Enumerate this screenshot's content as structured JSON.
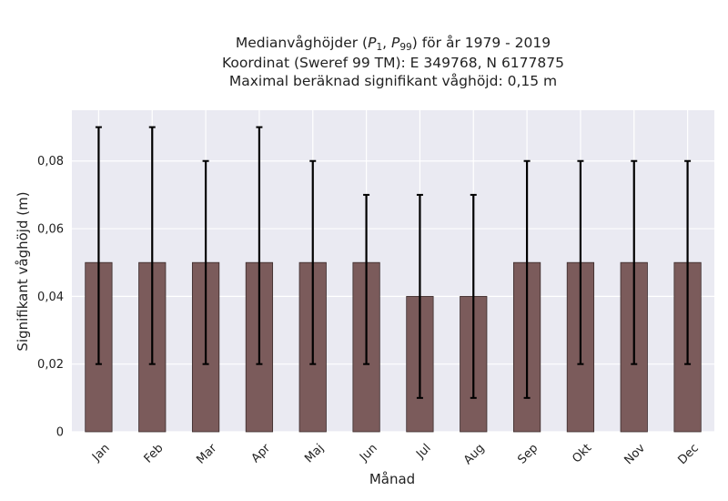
{
  "chart_data": {
    "type": "bar",
    "title_lines": [
      "Medianvåghöjder (P1, P99) för år 1979 - 2019",
      "Koordinat (Sweref 99 TM): E 349768, N 6177875",
      "Maximal beräknad signifikant våghöjd: 0,15 m"
    ],
    "title_main": {
      "pre": "Medianvåghöjder (",
      "p1_base": "P",
      "p1_sub": "1",
      "sep": ", ",
      "p99_base": "P",
      "p99_sub": "99",
      "post": ") för år 1979 - 2019"
    },
    "title_sub1": "Koordinat (Sweref 99 TM): E 349768, N 6177875",
    "title_sub2": "Maximal beräknad signifikant våghöjd: 0,15 m",
    "xlabel": "Månad",
    "ylabel": "Signifikant våghöjd (m)",
    "categories": [
      "Jan",
      "Feb",
      "Mar",
      "Apr",
      "Maj",
      "Jun",
      "Jul",
      "Aug",
      "Sep",
      "Okt",
      "Nov",
      "Dec"
    ],
    "values": [
      0.05,
      0.05,
      0.05,
      0.05,
      0.05,
      0.05,
      0.04,
      0.04,
      0.05,
      0.05,
      0.05,
      0.05
    ],
    "error_low": [
      0.02,
      0.02,
      0.02,
      0.02,
      0.02,
      0.02,
      0.01,
      0.01,
      0.01,
      0.02,
      0.02,
      0.02
    ],
    "error_high": [
      0.09,
      0.09,
      0.08,
      0.09,
      0.08,
      0.07,
      0.07,
      0.07,
      0.08,
      0.08,
      0.08,
      0.08
    ],
    "ylim": [
      0,
      0.095
    ],
    "yticks": [
      0,
      0.02,
      0.04,
      0.06,
      0.08
    ],
    "ytick_labels": [
      "0",
      "0,02",
      "0,04",
      "0,06",
      "0,08"
    ],
    "grid": true,
    "colors": {
      "bar": "#7b5b5b",
      "bar_edge": "#3a2a2a",
      "error": "#000000",
      "plot_bg": "#eaeaf2",
      "grid": "#ffffff"
    }
  }
}
